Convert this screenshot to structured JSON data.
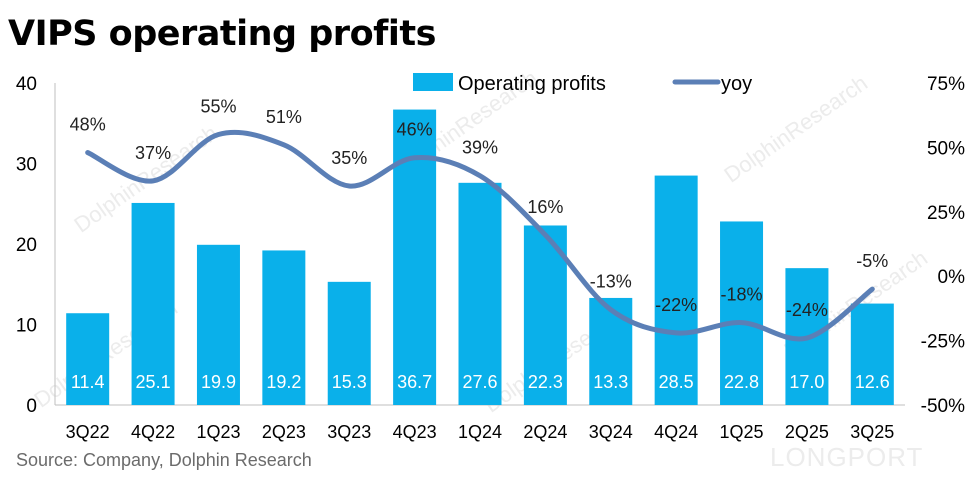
{
  "title": "VIPS operating profits",
  "source": "Source: Company, Dolphin Research",
  "watermarks": {
    "text": "DolphinResearch",
    "brand": "LONGPORT"
  },
  "colors": {
    "bar": "#0ab0ea",
    "line": "#5b7fb6",
    "bar_label": "#ffffff",
    "axis": "#000000"
  },
  "chart_data": {
    "type": "bar",
    "categories": [
      "3Q22",
      "4Q22",
      "1Q23",
      "2Q23",
      "3Q23",
      "4Q23",
      "1Q24",
      "2Q24",
      "3Q24",
      "4Q24",
      "1Q25",
      "2Q25",
      "3Q25"
    ],
    "series": [
      {
        "name": "Operating profits",
        "type": "bar",
        "axis": "left",
        "values": [
          11.4,
          25.1,
          19.9,
          19.2,
          15.3,
          36.7,
          27.6,
          22.3,
          13.3,
          28.5,
          22.8,
          17.0,
          12.6
        ],
        "labels": [
          "11.4",
          "25.1",
          "19.9",
          "19.2",
          "15.3",
          "36.7",
          "27.6",
          "22.3",
          "13.3",
          "28.5",
          "22.8",
          "17.0",
          "12.6"
        ]
      },
      {
        "name": "yoy",
        "type": "line",
        "axis": "right",
        "values": [
          48,
          37,
          55,
          51,
          35,
          46,
          39,
          16,
          -13,
          -22,
          -18,
          -24,
          -5
        ],
        "labels": [
          "48%",
          "37%",
          "55%",
          "51%",
          "35%",
          "46%",
          "39%",
          "16%",
          "-13%",
          "-22%",
          "-18%",
          "-24%",
          "-5%"
        ]
      }
    ],
    "y_left": {
      "min": 0,
      "max": 40,
      "ticks": [
        0,
        10,
        20,
        30,
        40
      ],
      "tick_labels": [
        "0",
        "10",
        "20",
        "30",
        "40"
      ]
    },
    "y_right": {
      "min": -50,
      "max": 75,
      "ticks": [
        75,
        50,
        25,
        0,
        -25,
        -50
      ],
      "tick_labels": [
        "75%",
        "50%",
        "25%",
        "0%",
        "-25%",
        "-50%"
      ]
    },
    "legend_position": "top-center",
    "grid": false
  }
}
